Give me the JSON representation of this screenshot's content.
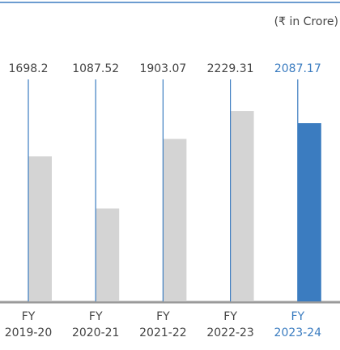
{
  "chart_data": {
    "type": "bar",
    "subtitle": "(₹ in Crore)",
    "categories": [
      [
        "FY",
        "2019-20"
      ],
      [
        "FY",
        "2020-21"
      ],
      [
        "FY",
        "2021-22"
      ],
      [
        "FY",
        "2022-23"
      ],
      [
        "FY",
        "2023-24"
      ]
    ],
    "values": [
      1698.2,
      1087.52,
      1903.07,
      2229.31,
      2087.17
    ],
    "colors": [
      "#d4d4d4",
      "#d4d4d4",
      "#d4d4d4",
      "#d4d4d4",
      "#3b7cc0"
    ],
    "ylim": [
      0,
      2600
    ]
  }
}
